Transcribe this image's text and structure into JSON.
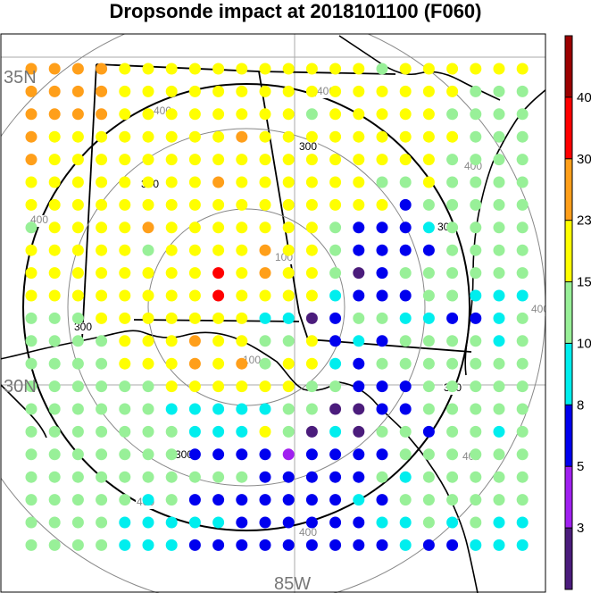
{
  "title": "Dropsonde impact at 2018101100 (F060)",
  "map": {
    "lat_labels": [
      "35N",
      "30N"
    ],
    "lon_label": "85W"
  },
  "rings": [
    {
      "label": "100",
      "color": "#888888"
    },
    {
      "label": "200",
      "color": "#888888"
    },
    {
      "label": "300",
      "color": "#000000"
    },
    {
      "label": "400",
      "color": "#888888"
    }
  ],
  "colorbar": {
    "ticks": [
      "3",
      "5",
      "8",
      "10",
      "15",
      "23",
      "30",
      "40"
    ],
    "colors": [
      "#4b1c7c",
      "#a020f0",
      "#0000ee",
      "#00eeee",
      "#98f098",
      "#ffff00",
      "#ff9f1a",
      "#ff0000",
      "#9b0000"
    ]
  },
  "chart_data": {
    "type": "heatmap",
    "title": "Dropsonde impact at 2018101100 (F060)",
    "grid_cols": 22,
    "grid_rows": 22,
    "class_breaks": [
      3,
      5,
      8,
      10,
      15,
      23,
      30,
      40
    ],
    "cell_rows": [
      "6666555555555554555555",
      "6666555555555555555444",
      "6666555555554555554444",
      "6555555556555555555444",
      "6555555555555555554444",
      "5555555565555554454444",
      "5555555555555555244444",
      "4555565555555422234444",
      "5555545555655422224444",
      "5555555575655402444444",
      "5555555575555322244333",
      "4445555555330244332234",
      "4444555655445232444434",
      "4444555656455324444444",
      "4444445555554422244444",
      "4444443333344002244444",
      "4444444333540304424434",
      "4444444222212222444444",
      "4444444444222224344444",
      "4444434222222232444444",
      "4444333332222223343433",
      "4444333222222222322333"
    ]
  }
}
